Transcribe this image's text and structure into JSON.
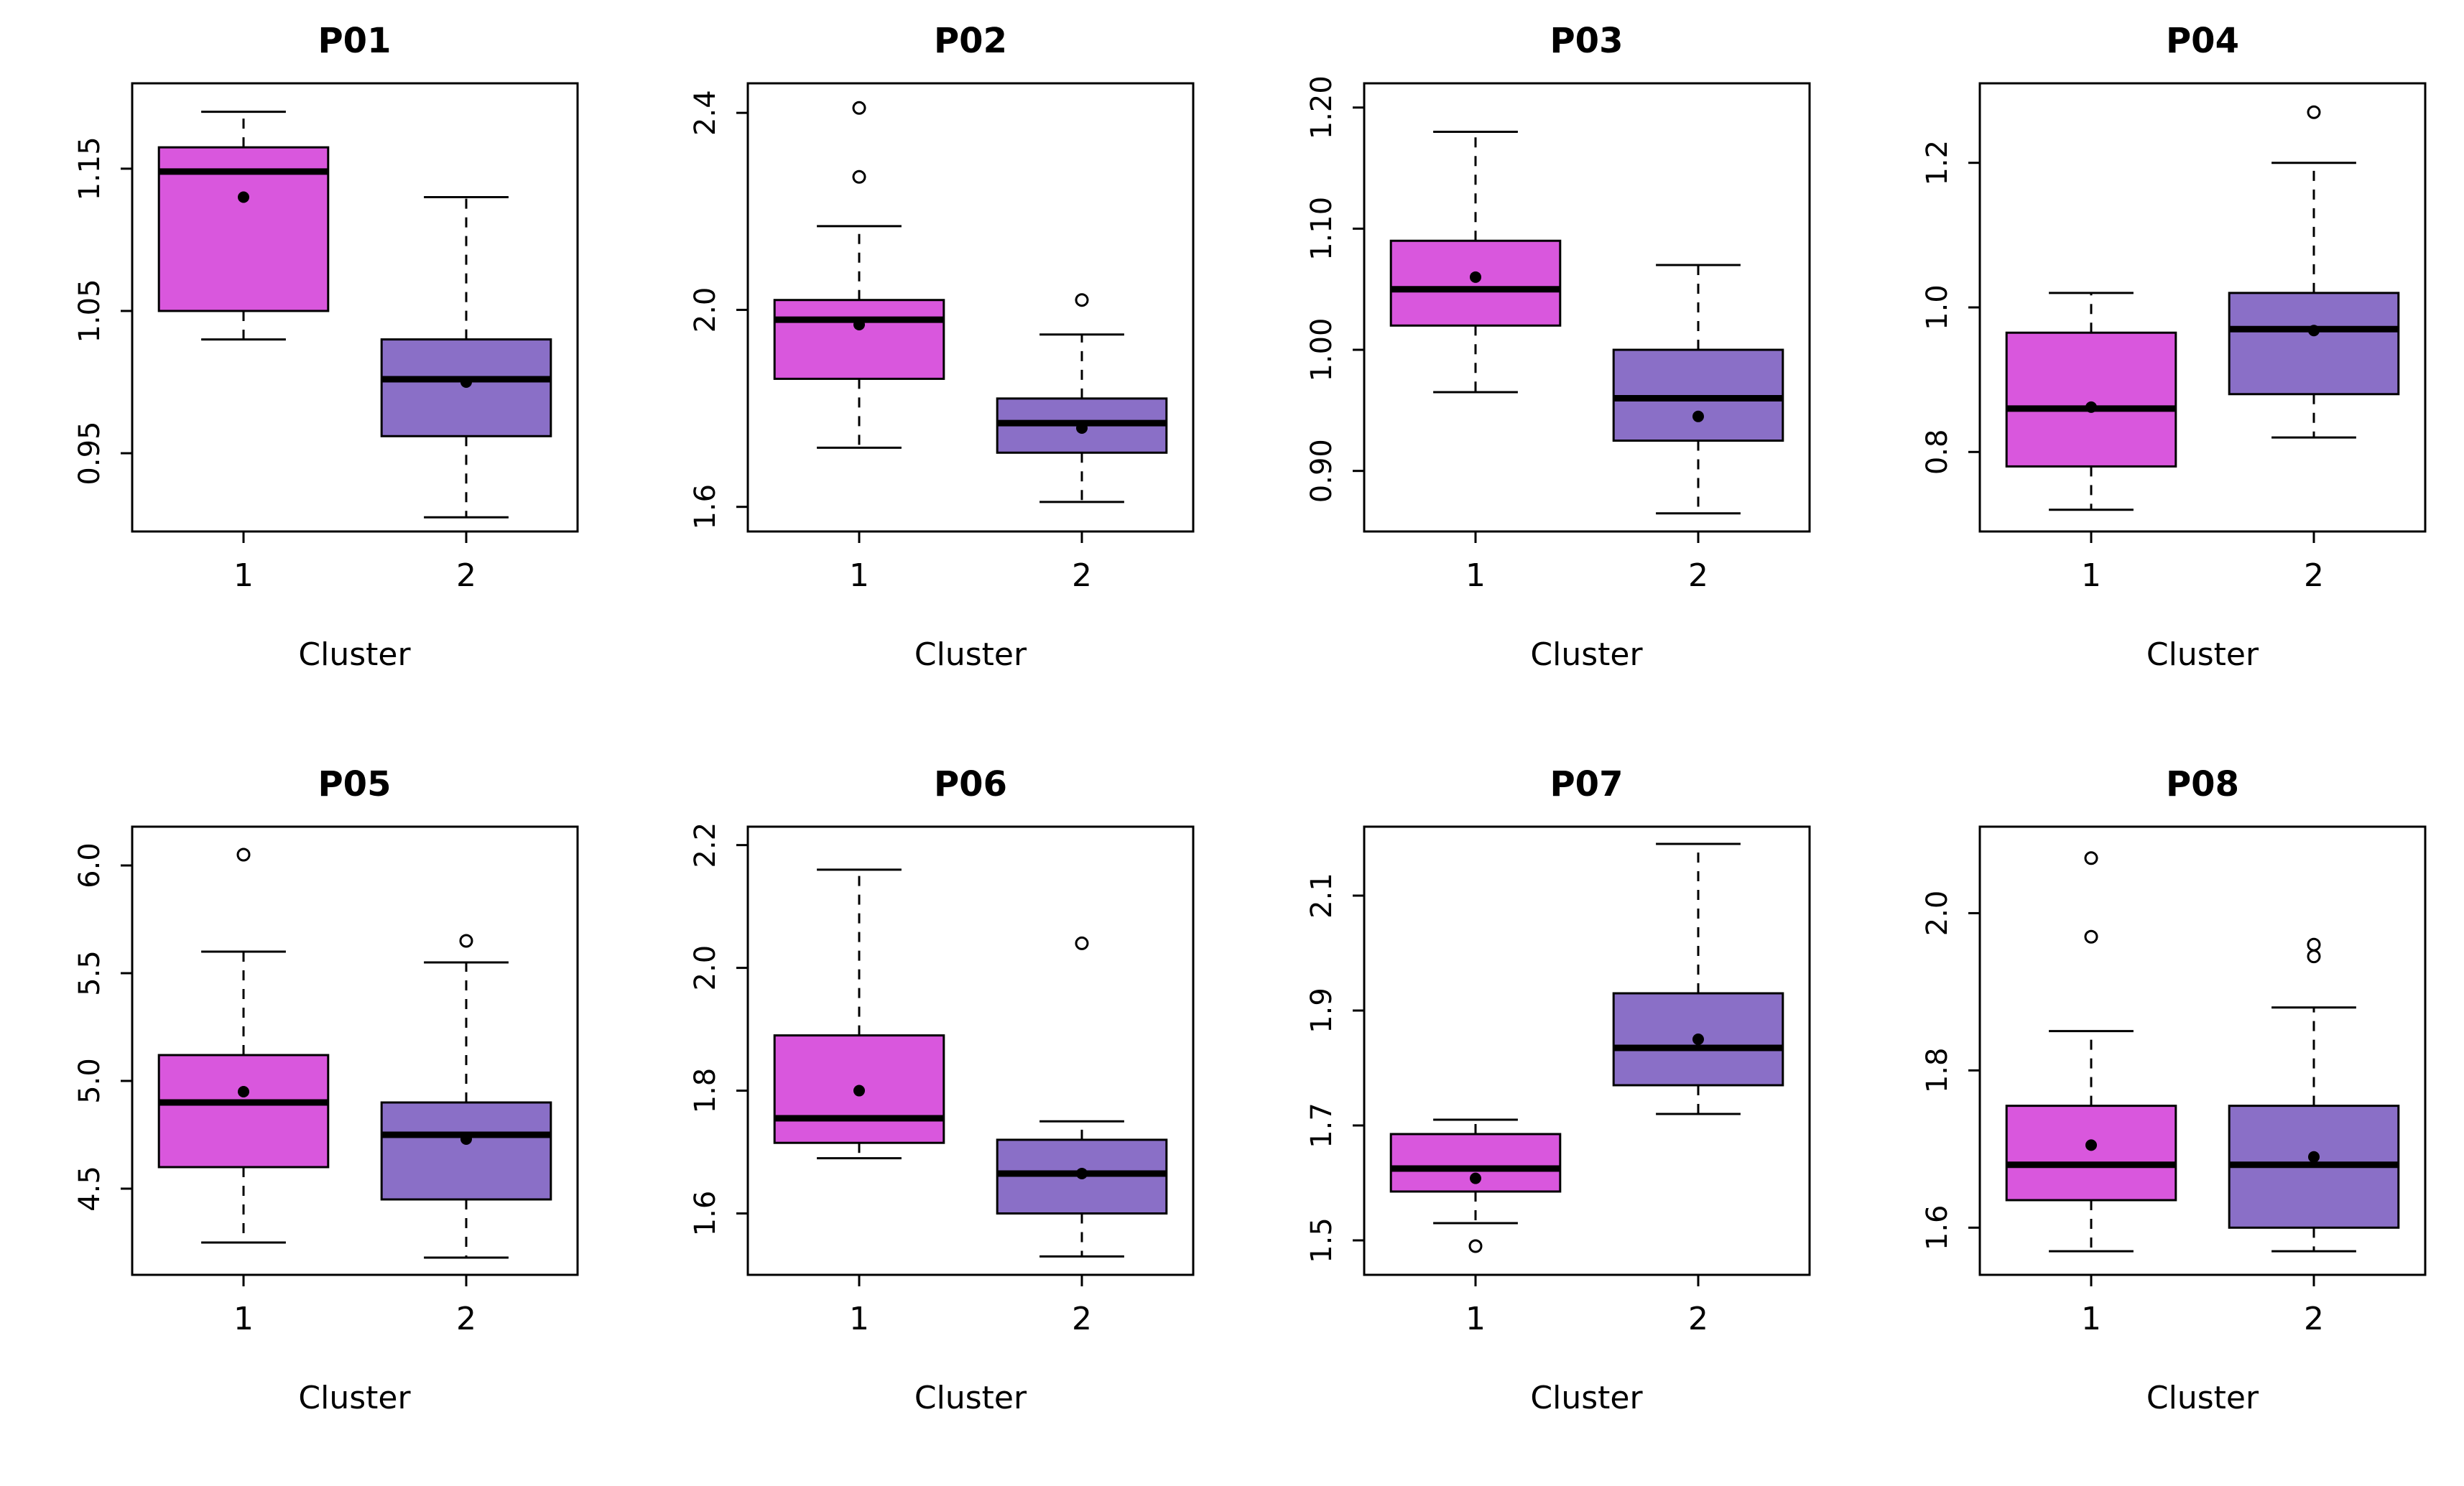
{
  "figure": {
    "background": "#ffffff",
    "rows": 2,
    "cols": 4,
    "box_border_color": "#000000",
    "cluster1_fill": "#D957DD",
    "cluster2_fill": "#8A6FC7"
  },
  "chart_data": [
    {
      "type": "box",
      "title": "P01",
      "xlabel": "Cluster",
      "categories": [
        "1",
        "2"
      ],
      "ylim": [
        0.895,
        1.21
      ],
      "yticks": [
        0.95,
        1.05,
        1.15
      ],
      "ytick_labels": [
        "0.95",
        "1.05",
        "1.15"
      ],
      "series": [
        {
          "name": "1",
          "fill": "#D957DD",
          "stats": {
            "whisker_low": 1.03,
            "q1": 1.05,
            "median": 1.148,
            "q3": 1.165,
            "whisker_high": 1.19
          },
          "mean": 1.13,
          "outliers": []
        },
        {
          "name": "2",
          "fill": "#8A6FC7",
          "stats": {
            "whisker_low": 0.905,
            "q1": 0.962,
            "median": 1.002,
            "q3": 1.03,
            "whisker_high": 1.13
          },
          "mean": 1.0,
          "outliers": []
        }
      ]
    },
    {
      "type": "box",
      "title": "P02",
      "xlabel": "Cluster",
      "categories": [
        "1",
        "2"
      ],
      "ylim": [
        1.55,
        2.46
      ],
      "yticks": [
        1.6,
        2.0,
        2.4
      ],
      "ytick_labels": [
        "1.6",
        "2.0",
        "2.4"
      ],
      "series": [
        {
          "name": "1",
          "fill": "#D957DD",
          "stats": {
            "whisker_low": 1.72,
            "q1": 1.86,
            "median": 1.98,
            "q3": 2.02,
            "whisker_high": 2.17
          },
          "mean": 1.97,
          "outliers": [
            2.41,
            2.27
          ]
        },
        {
          "name": "2",
          "fill": "#8A6FC7",
          "stats": {
            "whisker_low": 1.61,
            "q1": 1.71,
            "median": 1.77,
            "q3": 1.82,
            "whisker_high": 1.95
          },
          "mean": 1.76,
          "outliers": [
            2.02
          ]
        }
      ]
    },
    {
      "type": "box",
      "title": "P03",
      "xlabel": "Cluster",
      "categories": [
        "1",
        "2"
      ],
      "ylim": [
        0.85,
        1.22
      ],
      "yticks": [
        0.9,
        1.0,
        1.1,
        1.2
      ],
      "ytick_labels": [
        "0.90",
        "1.00",
        "1.10",
        "1.20"
      ],
      "series": [
        {
          "name": "1",
          "fill": "#D957DD",
          "stats": {
            "whisker_low": 0.965,
            "q1": 1.02,
            "median": 1.05,
            "q3": 1.09,
            "whisker_high": 1.18
          },
          "mean": 1.06,
          "outliers": []
        },
        {
          "name": "2",
          "fill": "#8A6FC7",
          "stats": {
            "whisker_low": 0.865,
            "q1": 0.925,
            "median": 0.96,
            "q3": 1.0,
            "whisker_high": 1.07
          },
          "mean": 0.945,
          "outliers": []
        }
      ]
    },
    {
      "type": "box",
      "title": "P04",
      "xlabel": "Cluster",
      "categories": [
        "1",
        "2"
      ],
      "ylim": [
        0.69,
        1.31
      ],
      "yticks": [
        0.8,
        1.0,
        1.2
      ],
      "ytick_labels": [
        "0.8",
        "1.0",
        "1.2"
      ],
      "series": [
        {
          "name": "1",
          "fill": "#D957DD",
          "stats": {
            "whisker_low": 0.72,
            "q1": 0.78,
            "median": 0.86,
            "q3": 0.965,
            "whisker_high": 1.02
          },
          "mean": 0.862,
          "outliers": []
        },
        {
          "name": "2",
          "fill": "#8A6FC7",
          "stats": {
            "whisker_low": 0.82,
            "q1": 0.88,
            "median": 0.97,
            "q3": 1.02,
            "whisker_high": 1.2
          },
          "mean": 0.968,
          "outliers": [
            1.27
          ]
        }
      ]
    },
    {
      "type": "box",
      "title": "P05",
      "xlabel": "Cluster",
      "categories": [
        "1",
        "2"
      ],
      "ylim": [
        4.1,
        6.18
      ],
      "yticks": [
        4.5,
        5.0,
        5.5,
        6.0
      ],
      "ytick_labels": [
        "4.5",
        "5.0",
        "5.5",
        "6.0"
      ],
      "series": [
        {
          "name": "1",
          "fill": "#D957DD",
          "stats": {
            "whisker_low": 4.25,
            "q1": 4.6,
            "median": 4.9,
            "q3": 5.12,
            "whisker_high": 5.6
          },
          "mean": 4.95,
          "outliers": [
            6.05
          ]
        },
        {
          "name": "2",
          "fill": "#8A6FC7",
          "stats": {
            "whisker_low": 4.18,
            "q1": 4.45,
            "median": 4.75,
            "q3": 4.9,
            "whisker_high": 5.55
          },
          "mean": 4.73,
          "outliers": [
            5.65
          ]
        }
      ]
    },
    {
      "type": "box",
      "title": "P06",
      "xlabel": "Cluster",
      "categories": [
        "1",
        "2"
      ],
      "ylim": [
        1.5,
        2.23
      ],
      "yticks": [
        1.6,
        1.8,
        2.0,
        2.2
      ],
      "ytick_labels": [
        "1.6",
        "1.8",
        "2.0",
        "2.2"
      ],
      "series": [
        {
          "name": "1",
          "fill": "#D957DD",
          "stats": {
            "whisker_low": 1.69,
            "q1": 1.715,
            "median": 1.755,
            "q3": 1.89,
            "whisker_high": 2.16
          },
          "mean": 1.8,
          "outliers": []
        },
        {
          "name": "2",
          "fill": "#8A6FC7",
          "stats": {
            "whisker_low": 1.53,
            "q1": 1.6,
            "median": 1.665,
            "q3": 1.72,
            "whisker_high": 1.75
          },
          "mean": 1.665,
          "outliers": [
            2.04
          ]
        }
      ]
    },
    {
      "type": "box",
      "title": "P07",
      "xlabel": "Cluster",
      "categories": [
        "1",
        "2"
      ],
      "ylim": [
        1.44,
        2.22
      ],
      "yticks": [
        1.5,
        1.7,
        1.9,
        2.1
      ],
      "ytick_labels": [
        "1.5",
        "1.7",
        "1.9",
        "2.1"
      ],
      "series": [
        {
          "name": "1",
          "fill": "#D957DD",
          "stats": {
            "whisker_low": 1.53,
            "q1": 1.585,
            "median": 1.625,
            "q3": 1.685,
            "whisker_high": 1.71
          },
          "mean": 1.608,
          "outliers": [
            1.49
          ]
        },
        {
          "name": "2",
          "fill": "#8A6FC7",
          "stats": {
            "whisker_low": 1.72,
            "q1": 1.77,
            "median": 1.835,
            "q3": 1.93,
            "whisker_high": 2.19
          },
          "mean": 1.85,
          "outliers": []
        }
      ]
    },
    {
      "type": "box",
      "title": "P08",
      "xlabel": "Cluster",
      "categories": [
        "1",
        "2"
      ],
      "ylim": [
        1.54,
        2.11
      ],
      "yticks": [
        1.6,
        1.8,
        2.0
      ],
      "ytick_labels": [
        "1.6",
        "1.8",
        "2.0"
      ],
      "series": [
        {
          "name": "1",
          "fill": "#D957DD",
          "stats": {
            "whisker_low": 1.57,
            "q1": 1.635,
            "median": 1.68,
            "q3": 1.755,
            "whisker_high": 1.85
          },
          "mean": 1.705,
          "outliers": [
            2.07,
            1.97
          ]
        },
        {
          "name": "2",
          "fill": "#8A6FC7",
          "stats": {
            "whisker_low": 1.57,
            "q1": 1.6,
            "median": 1.68,
            "q3": 1.755,
            "whisker_high": 1.88
          },
          "mean": 1.69,
          "outliers": [
            1.96,
            1.945
          ]
        }
      ]
    }
  ]
}
